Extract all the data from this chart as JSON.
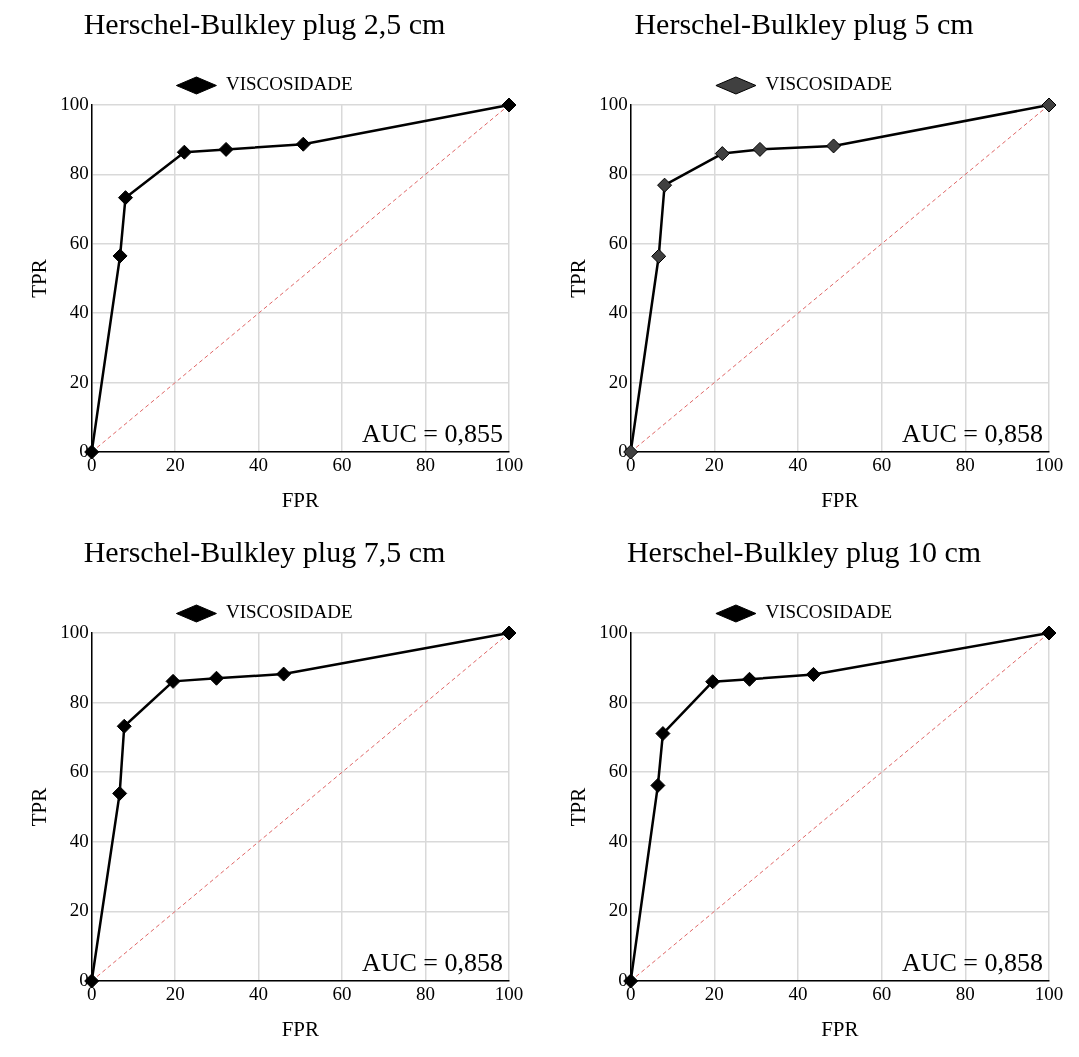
{
  "chart_data": [
    {
      "type": "line",
      "title": "Herschel-Bulkley plug 2,5 cm",
      "xlabel": "FPR",
      "ylabel": "TPR",
      "xlim": [
        0,
        100
      ],
      "xticks": [
        0,
        20,
        40,
        60,
        80,
        100
      ],
      "ylim": [
        0,
        100
      ],
      "yticks": [
        0,
        20,
        40,
        60,
        80,
        100
      ],
      "grid": true,
      "legend": "top",
      "annotations": [
        "AUC = 0,855"
      ],
      "series": [
        {
          "name": "VISCOSIDADE",
          "color": "#000000",
          "marker": "diamond",
          "line_style": "solid",
          "x": [
            0,
            6.8,
            8.1,
            22.2,
            32.2,
            50.7,
            100
          ],
          "values": [
            0,
            56.5,
            73.3,
            86.4,
            87.2,
            88.7,
            100
          ]
        },
        {
          "color": "#e06666",
          "marker": "none",
          "line_style": "dashed",
          "x": [
            0,
            100
          ],
          "values": [
            0,
            100
          ]
        }
      ]
    },
    {
      "type": "line",
      "title": "Herschel-Bulkley plug 5 cm",
      "xlabel": "FPR",
      "ylabel": "TPR",
      "xlim": [
        0,
        100
      ],
      "xticks": [
        0,
        20,
        40,
        60,
        80,
        100
      ],
      "ylim": [
        0,
        100
      ],
      "yticks": [
        0,
        20,
        40,
        60,
        80,
        100
      ],
      "grid": true,
      "legend": "top",
      "annotations": [
        "AUC = 0,858"
      ],
      "series": [
        {
          "name": "VISCOSIDADE",
          "color": "#404040",
          "marker": "diamond",
          "line_style": "solid",
          "x": [
            0,
            6.7,
            8.1,
            21.9,
            30.9,
            48.5,
            100
          ],
          "values": [
            0,
            56.4,
            76.9,
            86.0,
            87.2,
            88.2,
            100
          ]
        },
        {
          "color": "#e06666",
          "marker": "none",
          "line_style": "dashed",
          "x": [
            0,
            100
          ],
          "values": [
            0,
            100
          ]
        }
      ]
    },
    {
      "type": "line",
      "title": "Herschel-Bulkley plug 7,5 cm",
      "xlabel": "FPR",
      "ylabel": "TPR",
      "xlim": [
        0,
        100
      ],
      "xticks": [
        0,
        20,
        40,
        60,
        80,
        100
      ],
      "ylim": [
        0,
        100
      ],
      "yticks": [
        0,
        20,
        40,
        60,
        80,
        100
      ],
      "grid": true,
      "legend": "top",
      "annotations": [
        "AUC = 0,858"
      ],
      "series": [
        {
          "name": "VISCOSIDADE",
          "color": "#000000",
          "marker": "diamond",
          "line_style": "solid",
          "x": [
            0,
            6.7,
            7.8,
            19.5,
            29.9,
            46.0,
            100
          ],
          "values": [
            0,
            53.9,
            73.2,
            86.1,
            87.0,
            88.2,
            100
          ]
        },
        {
          "color": "#e06666",
          "marker": "none",
          "line_style": "dashed",
          "x": [
            0,
            100
          ],
          "values": [
            0,
            100
          ]
        }
      ]
    },
    {
      "type": "line",
      "title": "Herschel-Bulkley plug 10 cm",
      "xlabel": "FPR",
      "ylabel": "TPR",
      "xlim": [
        0,
        100
      ],
      "xticks": [
        0,
        20,
        40,
        60,
        80,
        100
      ],
      "ylim": [
        0,
        100
      ],
      "yticks": [
        0,
        20,
        40,
        60,
        80,
        100
      ],
      "grid": true,
      "legend": "top",
      "annotations": [
        "AUC = 0,858"
      ],
      "series": [
        {
          "name": "VISCOSIDADE",
          "color": "#000000",
          "marker": "diamond",
          "line_style": "solid",
          "x": [
            0,
            6.5,
            7.7,
            19.6,
            28.4,
            43.7,
            100
          ],
          "values": [
            0,
            56.2,
            71.1,
            86.0,
            86.7,
            88.1,
            100
          ]
        },
        {
          "color": "#e06666",
          "marker": "none",
          "line_style": "dashed",
          "x": [
            0,
            100
          ],
          "values": [
            0,
            100
          ]
        }
      ]
    }
  ]
}
